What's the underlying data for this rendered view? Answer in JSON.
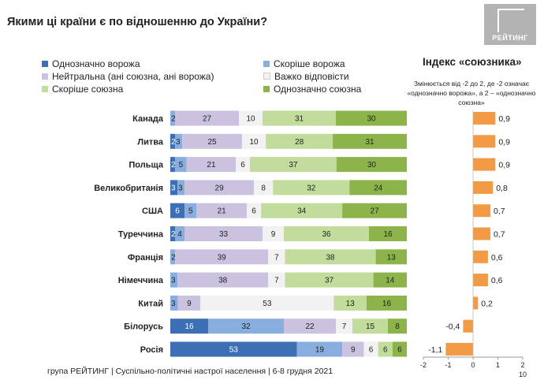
{
  "title": "Якими ці країни є по відношенню до України?",
  "logo": {
    "text": "РЕЙТИНГ"
  },
  "footer": "група РЕЙТИНГ | Суспільно-політичні настрої населення | 6-8 грудня 2021",
  "index_title": "Індекс «союзника»",
  "index_note": "Змінюється від -2 до 2, де -2 означає «однозначно ворожа», а 2 – «однозначно союзна»",
  "colors": {
    "definitely_hostile": "#3d6fb5",
    "rather_hostile": "#88aee0",
    "neutral": "#cbc2e0",
    "hard_to_say": "#f2f2f2",
    "rather_ally": "#c2dc9c",
    "definitely_ally": "#8db44a",
    "index_bar": "#f39a45"
  },
  "chart_data": [
    {
      "type": "bar",
      "orientation": "horizontal",
      "stacked": true,
      "unit": "%",
      "categories": [
        "Канада",
        "Литва",
        "Польща",
        "Великобританія",
        "США",
        "Туреччина",
        "Франція",
        "Німеччина",
        "Китай",
        "Білорусь",
        "Росія"
      ],
      "series": [
        {
          "name": "Однозначно ворожа",
          "values": [
            null,
            2,
            2,
            3,
            6,
            2,
            null,
            null,
            null,
            16,
            53
          ]
        },
        {
          "name": "Скоріше ворожа",
          "values": [
            2,
            3,
            5,
            3,
            5,
            4,
            2,
            3,
            3,
            32,
            19
          ]
        },
        {
          "name": "Нейтральна (ані союзна, ані ворожа)",
          "values": [
            27,
            25,
            21,
            29,
            21,
            33,
            39,
            38,
            9,
            22,
            9
          ]
        },
        {
          "name": "Важко відповісти",
          "values": [
            10,
            10,
            6,
            8,
            6,
            9,
            7,
            7,
            53,
            7,
            6
          ]
        },
        {
          "name": "Скоріше союзна",
          "values": [
            31,
            28,
            37,
            32,
            34,
            36,
            38,
            37,
            13,
            15,
            6
          ]
        },
        {
          "name": "Однозначно союзна",
          "values": [
            30,
            31,
            30,
            24,
            27,
            16,
            13,
            14,
            16,
            8,
            6
          ]
        }
      ],
      "legend": "top"
    },
    {
      "type": "bar",
      "orientation": "horizontal",
      "title": "Індекс «союзника»",
      "categories": [
        "Канада",
        "Литва",
        "Польща",
        "Великобританія",
        "США",
        "Туреччина",
        "Франція",
        "Німеччина",
        "Китай",
        "Білорусь",
        "Росія"
      ],
      "values": [
        0.9,
        0.9,
        0.9,
        0.8,
        0.7,
        0.7,
        0.6,
        0.6,
        0.2,
        -0.4,
        -1.1
      ],
      "value_labels": [
        "0,9",
        "0,9",
        "0,9",
        "0,8",
        "0,7",
        "0,7",
        "0,6",
        "0,6",
        "0,2",
        "-0,4",
        "-1,1"
      ],
      "xlim": [
        -2,
        2
      ],
      "tick_labels": [
        "-2",
        "-1",
        "0",
        "1",
        "2"
      ],
      "tick_suffix": "10"
    }
  ]
}
